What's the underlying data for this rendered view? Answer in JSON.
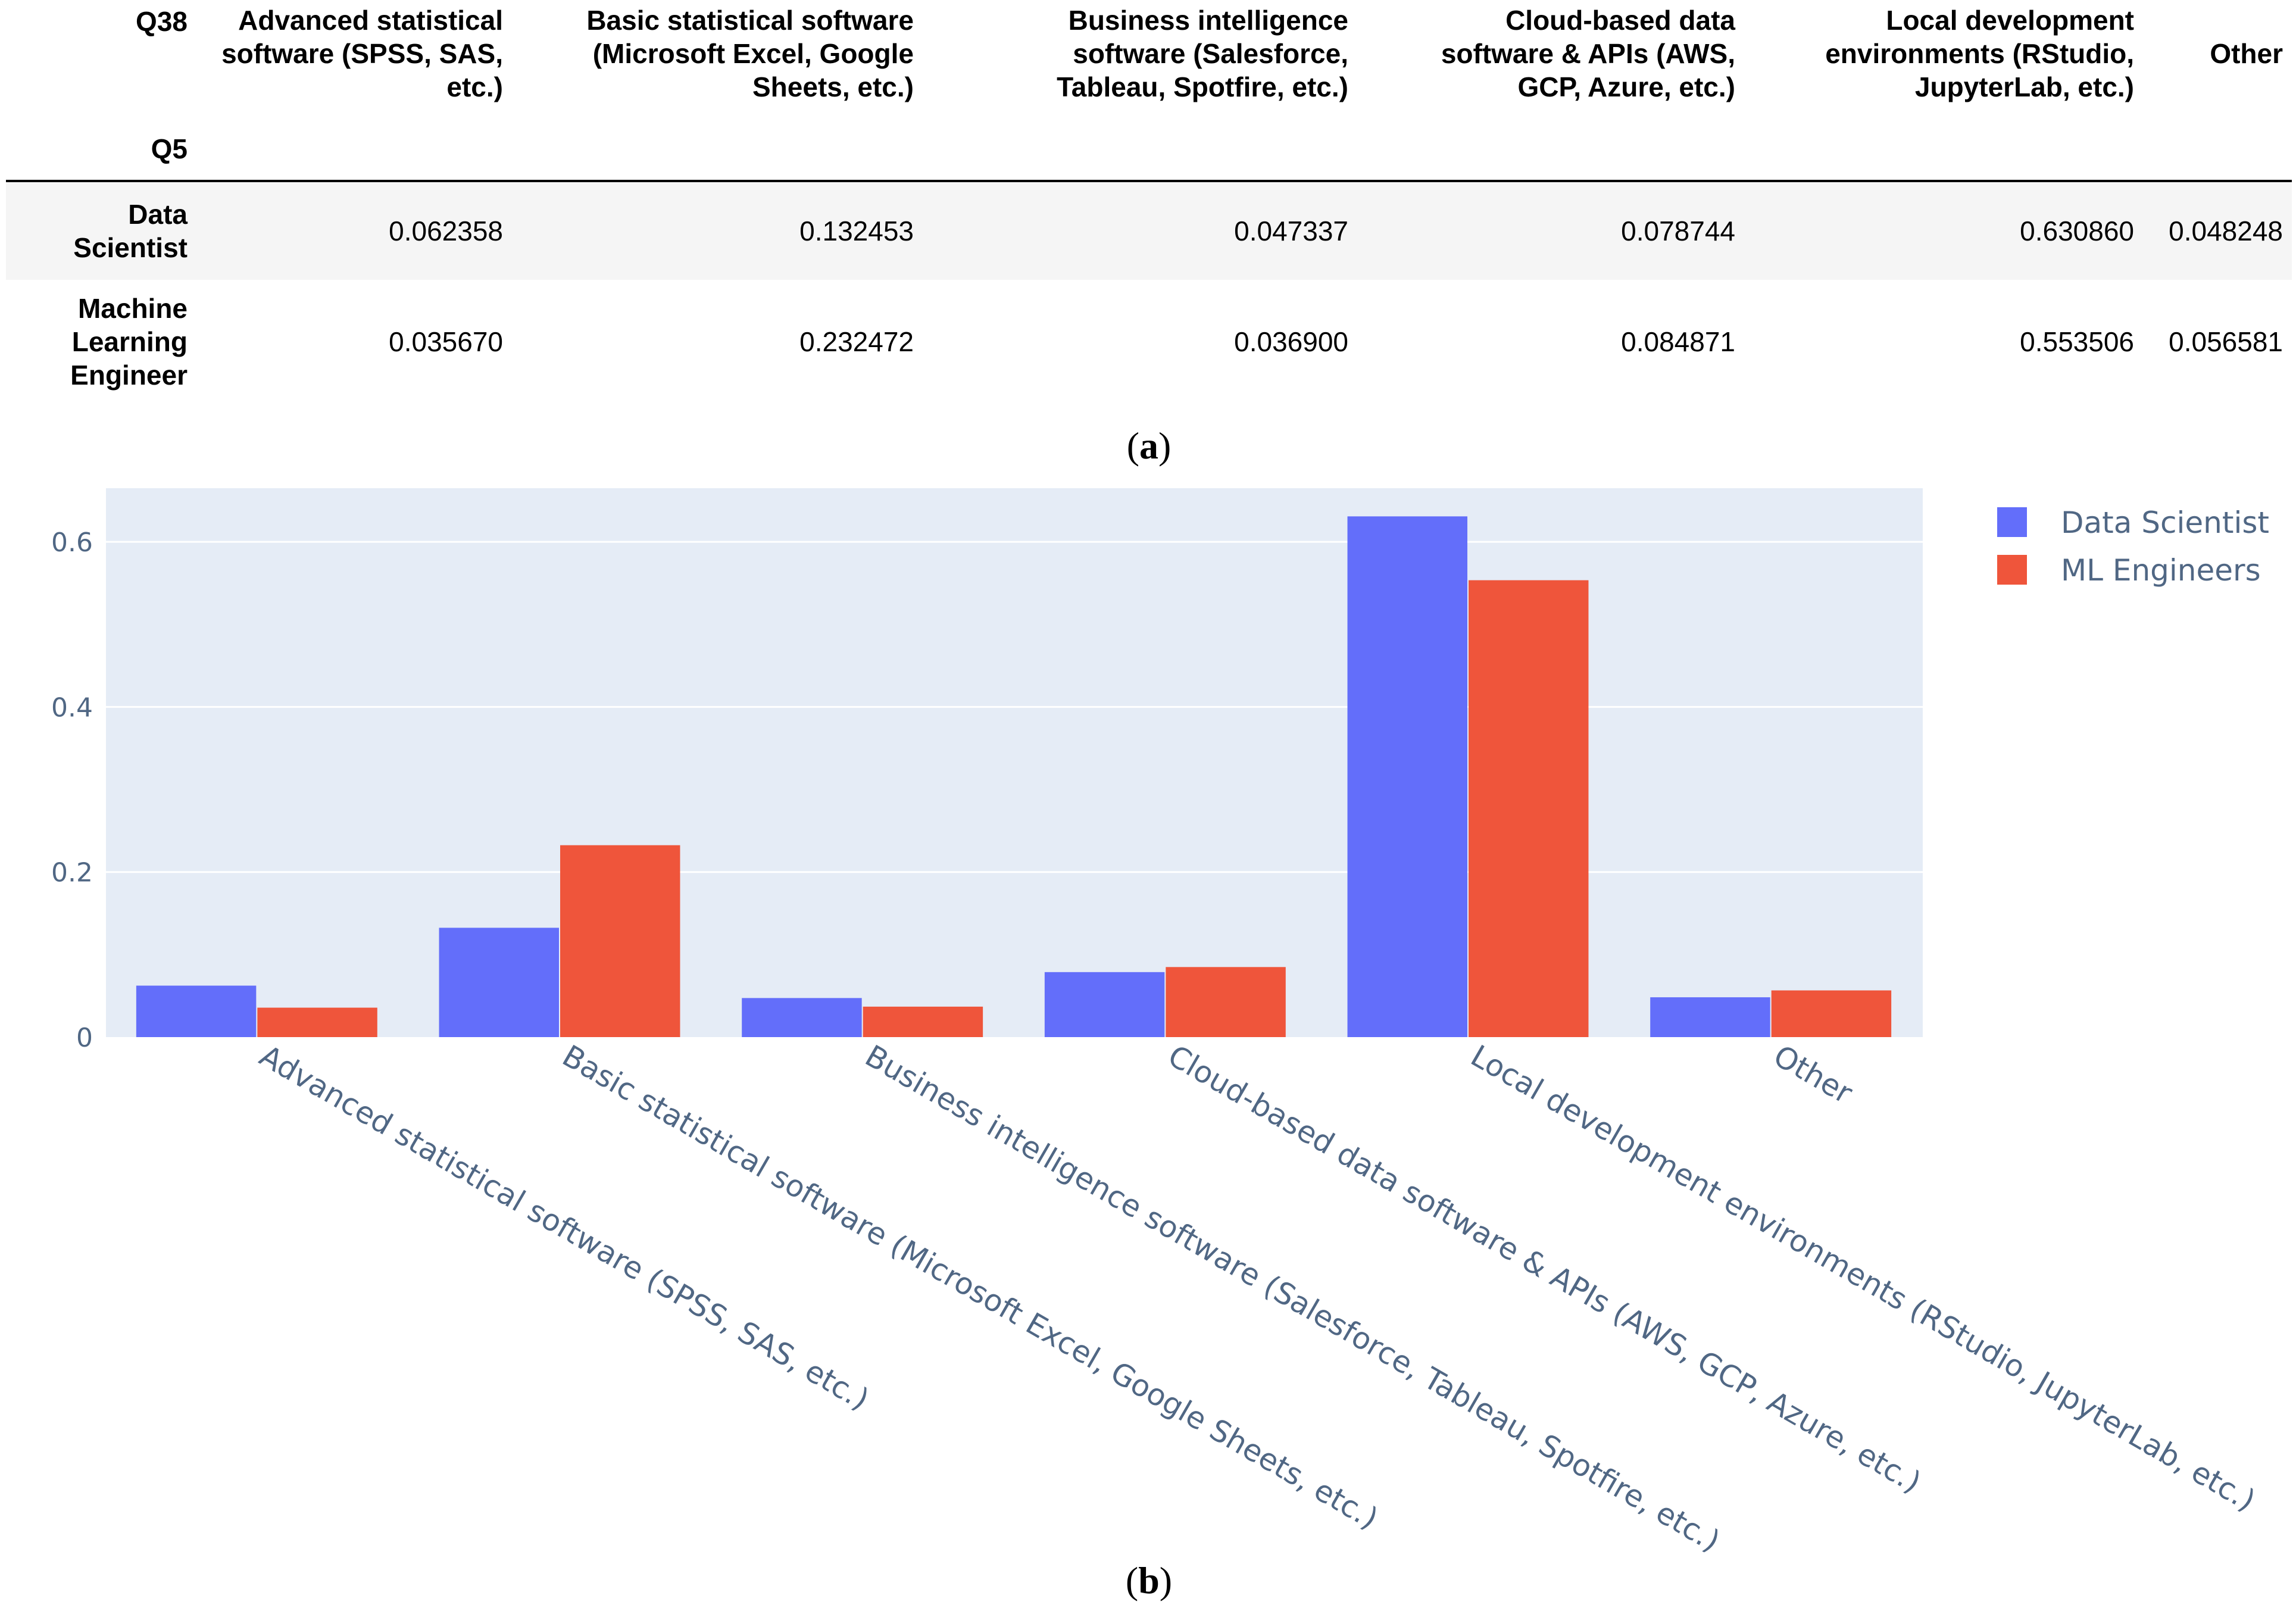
{
  "table": {
    "col_index_label": "Q38",
    "row_index_label": "Q5",
    "columns": [
      "Advanced statistical software (SPSS, SAS, etc.)",
      "Basic statistical software (Microsoft Excel, Google Sheets, etc.)",
      "Business intelligence software (Salesforce, Tableau, Spotfire, etc.)",
      "Cloud-based data software & APIs (AWS, GCP, Azure, etc.)",
      "Local development environments (RStudio, JupyterLab, etc.)",
      "Other"
    ],
    "rows": [
      {
        "label": "Data Scientist",
        "values": [
          "0.062358",
          "0.132453",
          "0.047337",
          "0.078744",
          "0.630860",
          "0.048248"
        ]
      },
      {
        "label": "Machine Learning Engineer",
        "values": [
          "0.035670",
          "0.232472",
          "0.036900",
          "0.084871",
          "0.553506",
          "0.056581"
        ]
      }
    ]
  },
  "captions": {
    "a": "a",
    "b": "b"
  },
  "colors": {
    "data_scientist": "#636efa",
    "ml_engineers": "#ef553b",
    "plot_bg": "#e5ecf6",
    "grid": "#ffffff",
    "tick": "#506784"
  },
  "chart_data": {
    "type": "bar",
    "categories": [
      "Advanced statistical software (SPSS, SAS, etc.)",
      "Basic statistical software (Microsoft Excel, Google Sheets, etc.)",
      "Business intelligence software (Salesforce, Tableau, Spotfire, etc.)",
      "Cloud-based data software & APIs (AWS, GCP, Azure, etc.)",
      "Local development environments (RStudio, JupyterLab, etc.)",
      "Other"
    ],
    "series": [
      {
        "name": "Data Scientist",
        "color": "#636efa",
        "values": [
          0.062358,
          0.132453,
          0.047337,
          0.078744,
          0.63086,
          0.048248
        ]
      },
      {
        "name": "ML Engineers",
        "color": "#ef553b",
        "values": [
          0.03567,
          0.232472,
          0.0369,
          0.084871,
          0.553506,
          0.056581
        ]
      }
    ],
    "yticks": [
      0,
      0.2,
      0.4,
      0.6
    ],
    "ytick_labels": [
      "0",
      "0.2",
      "0.4",
      "0.6"
    ],
    "ylim": [
      0,
      0.665
    ],
    "title": "",
    "xlabel": "",
    "ylabel": "",
    "legend": "top-right",
    "grid": true
  }
}
